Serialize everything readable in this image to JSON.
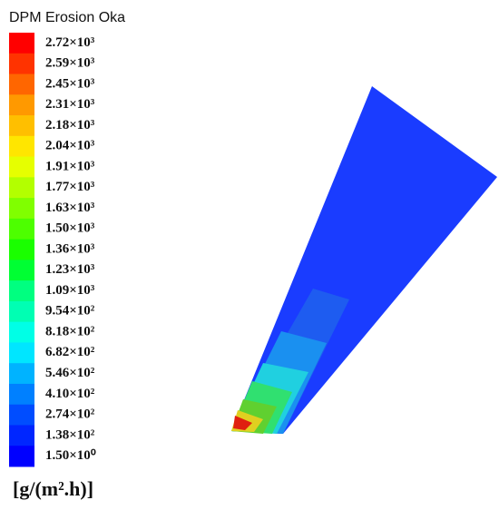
{
  "title": "DPM Erosion Oka",
  "legend": [
    {
      "label": "2.72×10³",
      "color": "#ff0000"
    },
    {
      "label": "2.59×10³",
      "color": "#ff3300"
    },
    {
      "label": "2.45×10³",
      "color": "#ff6600"
    },
    {
      "label": "2.31×10³",
      "color": "#ff9900"
    },
    {
      "label": "2.18×10³",
      "color": "#ffbf00"
    },
    {
      "label": "2.04×10³",
      "color": "#ffe600"
    },
    {
      "label": "1.91×10³",
      "color": "#e6ff00"
    },
    {
      "label": "1.77×10³",
      "color": "#b3ff00"
    },
    {
      "label": "1.63×10³",
      "color": "#80ff00"
    },
    {
      "label": "1.50×10³",
      "color": "#4dff00"
    },
    {
      "label": "1.36×10³",
      "color": "#1aff00"
    },
    {
      "label": "1.23×10³",
      "color": "#00ff33"
    },
    {
      "label": "1.09×10³",
      "color": "#00ff80"
    },
    {
      "label": "9.54×10²",
      "color": "#00ffb3"
    },
    {
      "label": "8.18×10²",
      "color": "#00ffe6"
    },
    {
      "label": "6.82×10²",
      "color": "#00e6ff"
    },
    {
      "label": "5.46×10²",
      "color": "#00b3ff"
    },
    {
      "label": "4.10×10²",
      "color": "#0080ff"
    },
    {
      "label": "2.74×10²",
      "color": "#004dff"
    },
    {
      "label": "1.38×10²",
      "color": "#0026ff"
    },
    {
      "label": "1.50×10⁰",
      "color": "#0000ff"
    }
  ],
  "unit": "[g/(m².h)]"
}
